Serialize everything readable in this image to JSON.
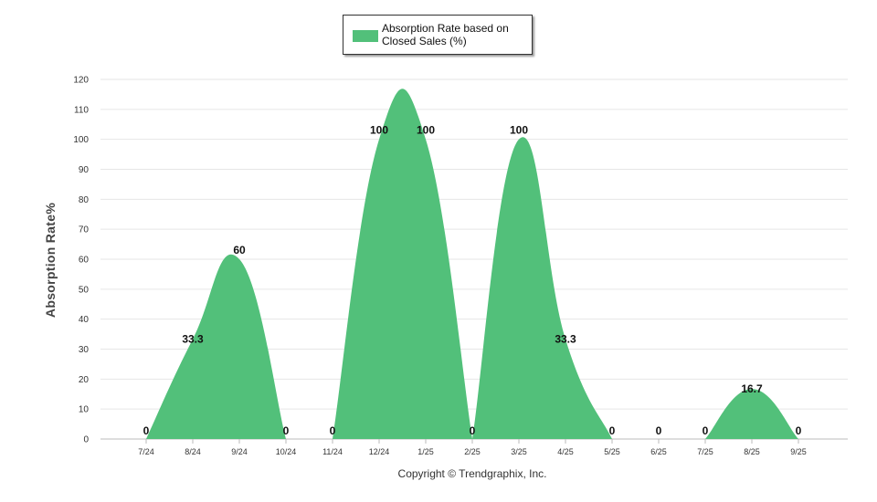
{
  "chart_data": {
    "type": "area",
    "title": "",
    "ylabel": "Absorption Rate%",
    "xlabel": "",
    "ylim": [
      0,
      120
    ],
    "yticks": [
      0,
      10,
      20,
      30,
      40,
      50,
      60,
      70,
      80,
      90,
      100,
      110,
      120
    ],
    "grid": true,
    "legend_position": "top-center",
    "categories": [
      "7/24",
      "8/24",
      "9/24",
      "10/24",
      "11/24",
      "12/24",
      "1/25",
      "2/25",
      "3/25",
      "4/25",
      "5/25",
      "6/25",
      "7/25",
      "8/25",
      "9/25"
    ],
    "series": [
      {
        "name": "Absorption Rate based on Closed Sales (%)",
        "color": "#52c07a",
        "values": [
          0,
          33.3,
          60,
          0,
          0,
          100,
          100,
          0,
          100,
          33.3,
          0,
          0,
          0,
          16.7,
          0
        ],
        "labels": [
          "0",
          "33.3",
          "60",
          "0",
          "0",
          "100",
          "100",
          "0",
          "100",
          "33.3",
          "0",
          "0",
          "0",
          "16.7",
          "0"
        ]
      }
    ]
  },
  "footer": {
    "copyright": "Copyright © Trendgraphix, Inc."
  }
}
